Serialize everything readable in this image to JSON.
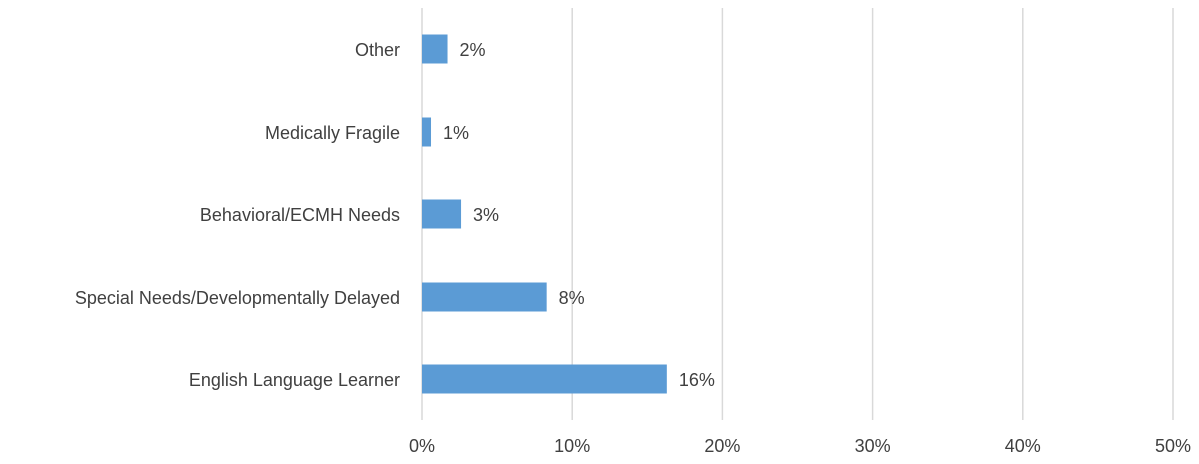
{
  "chart_data": {
    "type": "bar",
    "orientation": "horizontal",
    "categories": [
      "Other",
      "Medically Fragile",
      "Behavioral/ECMH Needs",
      "Special Needs/Developmentally Delayed",
      "English Language Learner"
    ],
    "values": [
      1.7,
      0.6,
      2.6,
      8.3,
      16.3
    ],
    "value_labels": [
      "2%",
      "1%",
      "3%",
      "8%",
      "16%"
    ],
    "xlim": [
      0,
      50
    ],
    "xticks": [
      0,
      10,
      20,
      30,
      40,
      50
    ],
    "xtick_labels": [
      "0%",
      "10%",
      "20%",
      "30%",
      "40%",
      "50%"
    ],
    "title": "",
    "xlabel": "",
    "ylabel": "",
    "grid": "vertical",
    "legend": "none",
    "colors": {
      "bar": "#5B9BD5",
      "grid": "#D9D9D9",
      "text": "#404040"
    }
  }
}
